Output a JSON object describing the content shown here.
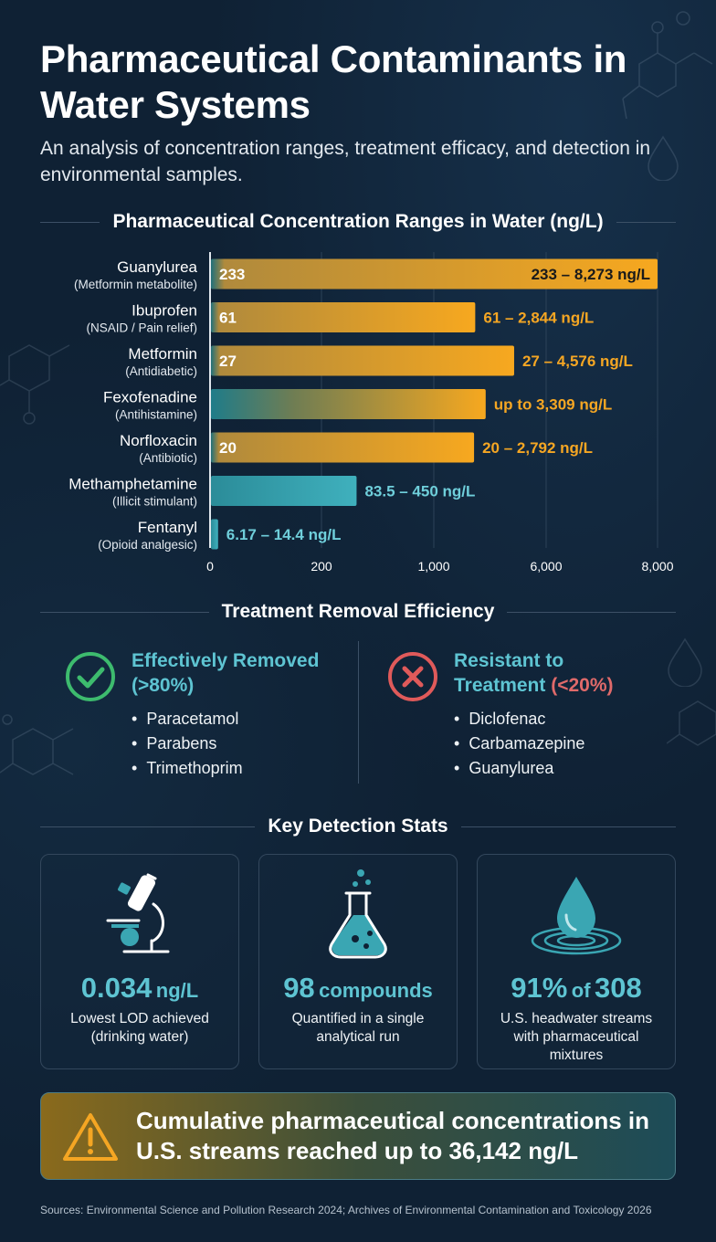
{
  "header": {
    "title": "Pharmaceutical Contaminants in Water Systems",
    "subtitle": "An analysis of concentration ranges, treatment efficacy, and detection in environmental samples."
  },
  "chart_data": {
    "type": "bar",
    "orientation": "horizontal",
    "title": "Pharmaceutical Concentration Ranges in Water (ng/L)",
    "axis_scale": "piecewise (0, 200, 1,000, 6,000, 8,000)",
    "x_ticks": [
      "0",
      "200",
      "1,000",
      "6,000",
      "8,000"
    ],
    "tick_values": [
      0,
      200,
      1000,
      6000,
      8000
    ],
    "grid": "vertical gridlines",
    "categories": [
      {
        "name": "Guanylurea",
        "sub": "(Metformin metabolite)",
        "min": 233,
        "max": 8273,
        "inner_label": "233",
        "range_label": "233 – 8,273 ng/L",
        "color": "#f5a623"
      },
      {
        "name": "Ibuprofen",
        "sub": "(NSAID / Pain relief)",
        "min": 61,
        "max": 2844,
        "inner_label": "61",
        "range_label": "61 – 2,844 ng/L",
        "color": "#f5a623"
      },
      {
        "name": "Metformin",
        "sub": "(Antidiabetic)",
        "min": 27,
        "max": 4576,
        "inner_label": "27",
        "range_label": "27 – 4,576 ng/L",
        "color": "#f5a623"
      },
      {
        "name": "Fexofenadine",
        "sub": "(Antihistamine)",
        "min": 0,
        "max": 3309,
        "inner_label": "",
        "range_label": "up to 3,309 ng/L",
        "color": "#f5a623"
      },
      {
        "name": "Norfloxacin",
        "sub": "(Antibiotic)",
        "min": 20,
        "max": 2792,
        "inner_label": "20",
        "range_label": "20 – 2,792 ng/L",
        "color": "#f5a623"
      },
      {
        "name": "Methamphetamine",
        "sub": "(Illicit stimulant)",
        "min": 83.5,
        "max": 450,
        "inner_label": "",
        "range_label": "83.5 – 450 ng/L",
        "color": "#3aa6b3"
      },
      {
        "name": "Fentanyl",
        "sub": "(Opioid analgesic)",
        "min": 6.17,
        "max": 14.4,
        "inner_label": "",
        "range_label": "6.17 – 14.4 ng/L",
        "color": "#3aa6b3"
      }
    ]
  },
  "treatment": {
    "heading": "Treatment Removal Efficiency",
    "removed": {
      "title": "Effectively Removed",
      "qualifier": "(>80%)",
      "items": [
        "Paracetamol",
        "Parabens",
        "Trimethoprim"
      ],
      "color": "#3dbb6e"
    },
    "resistant": {
      "title_line1": "Resistant to",
      "title_line2": "Treatment",
      "qualifier": "(<20%)",
      "items": [
        "Diclofenac",
        "Carbamazepine",
        "Guanylurea"
      ],
      "color": "#e05a5a"
    }
  },
  "stats": {
    "heading": "Key Detection Stats",
    "cards": [
      {
        "icon": "microscope-icon",
        "value": "0.034",
        "unit": "ng/L",
        "caption": "Lowest LOD achieved (drinking water)"
      },
      {
        "icon": "flask-icon",
        "value": "98",
        "unit": "compounds",
        "caption": "Quantified in a single analytical run"
      },
      {
        "icon": "water-drop-icon",
        "value": "91%",
        "unit": "of",
        "value2": "308",
        "caption": "U.S. headwater streams with pharmaceutical mixtures"
      }
    ]
  },
  "callout": {
    "icon": "warning-icon",
    "text": "Cumulative pharmaceutical concentrations in U.S. streams reached up to 36,142 ng/L"
  },
  "sources": "Sources: Environmental Science and Pollution Research 2024; Archives of Environmental Contamination and Toxicology 2026",
  "colors": {
    "background": "#0f2134",
    "amber": "#f5a623",
    "teal": "#3aa6b3",
    "green": "#3dbb6e",
    "red": "#e05a5a"
  }
}
